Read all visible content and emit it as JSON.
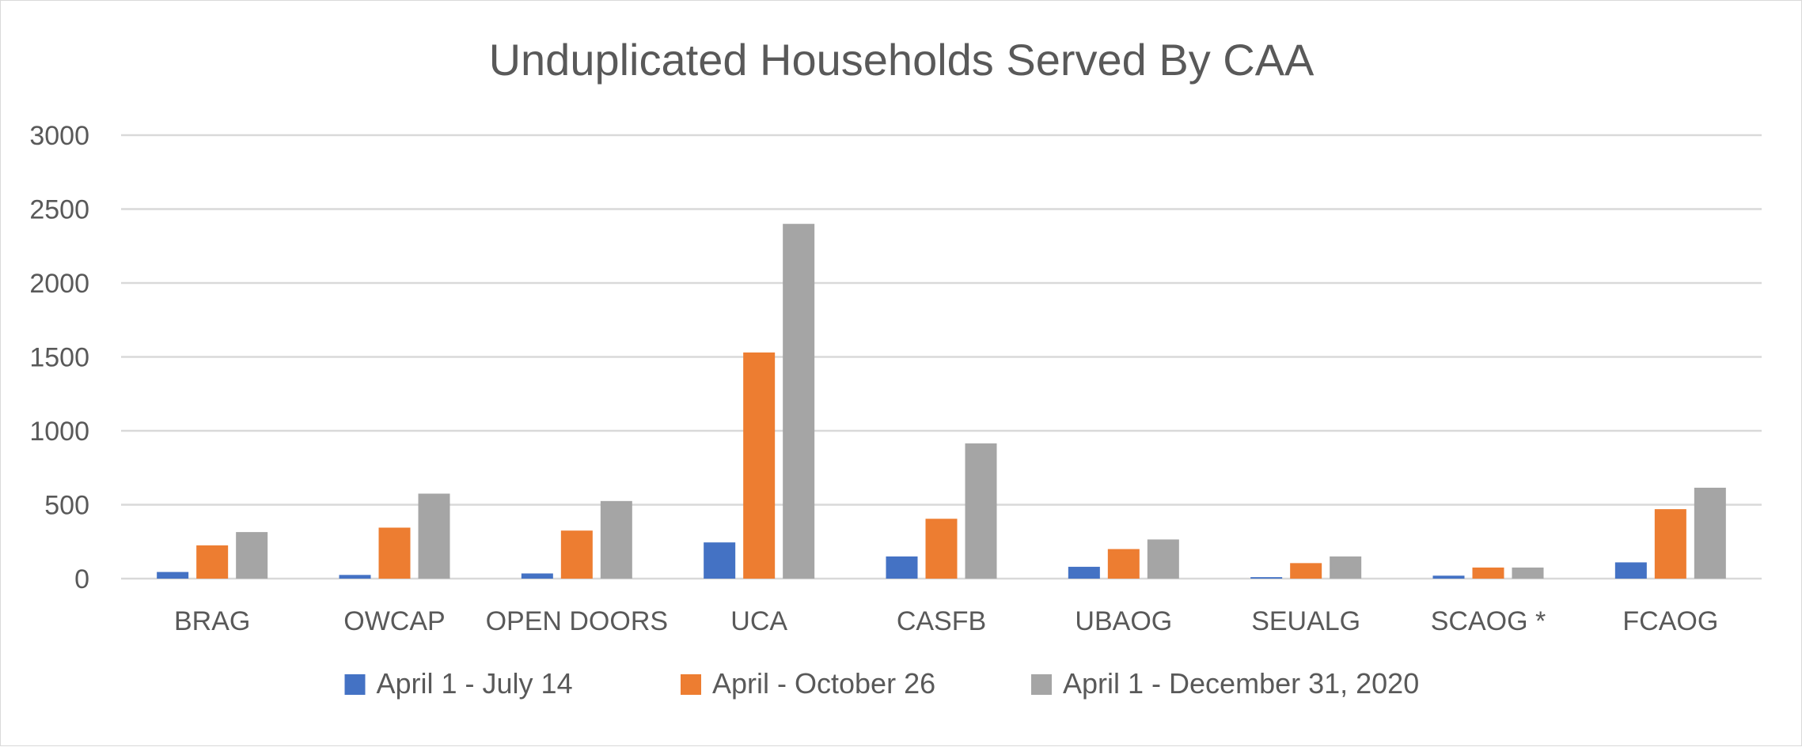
{
  "chart_data": {
    "type": "bar",
    "title": "Unduplicated Households Served By CAA",
    "xlabel": "",
    "ylabel": "",
    "ylim": [
      0,
      3000
    ],
    "yticks": [
      0,
      500,
      1000,
      1500,
      2000,
      2500,
      3000
    ],
    "grid": true,
    "legend_position": "bottom",
    "categories": [
      "BRAG",
      "OWCAP",
      "OPEN DOORS",
      "UCA",
      "CASFB",
      "UBAOG",
      "SEUALG",
      "SCAOG *",
      "FCAOG"
    ],
    "series": [
      {
        "name": "April 1 - July 14",
        "color": "#4472c4",
        "values": [
          45,
          25,
          35,
          245,
          150,
          80,
          10,
          20,
          110
        ]
      },
      {
        "name": "April - October 26",
        "color": "#ed7d31",
        "values": [
          225,
          345,
          325,
          1530,
          405,
          200,
          105,
          75,
          470
        ]
      },
      {
        "name": "April 1 - December 31, 2020",
        "color": "#a5a5a5",
        "values": [
          315,
          575,
          525,
          2400,
          915,
          265,
          150,
          75,
          615
        ]
      }
    ]
  }
}
